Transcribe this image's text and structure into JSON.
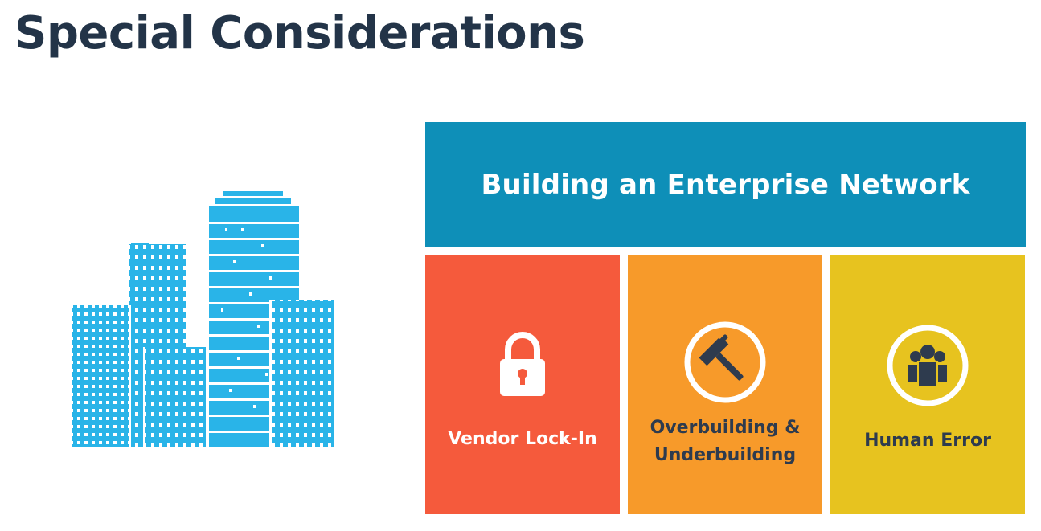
{
  "title": "Special Considerations",
  "banner": {
    "text": "Building an Enterprise Network"
  },
  "cards": [
    {
      "label_lines": [
        "Vendor Lock-In"
      ],
      "icon": "lock-icon",
      "color": "#f55a3c"
    },
    {
      "label_lines": [
        "Overbuilding &",
        "Underbuilding"
      ],
      "icon": "hammer-icon",
      "color": "#f79a2a"
    },
    {
      "label_lines": [
        "Human Error"
      ],
      "icon": "people-icon",
      "color": "#e7c31f"
    }
  ],
  "illustration": {
    "icon": "city-buildings-icon",
    "color": "#29b4e8"
  },
  "colors": {
    "title": "#233448",
    "banner": "#0e8fb8"
  }
}
